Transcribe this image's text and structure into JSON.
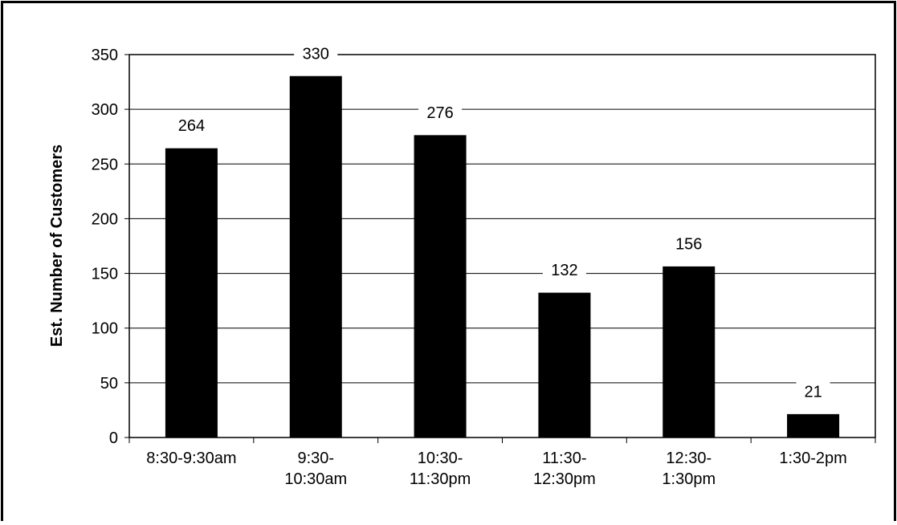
{
  "chart_data": {
    "type": "bar",
    "title": "",
    "xlabel": "",
    "ylabel": "Est. Number of Customers",
    "categories": [
      [
        "8:30-9:30am"
      ],
      [
        "9:30-",
        "10:30am"
      ],
      [
        "10:30-",
        "11:30pm"
      ],
      [
        "11:30-",
        "12:30pm"
      ],
      [
        "12:30-",
        "1:30pm"
      ],
      [
        "1:30-2pm"
      ]
    ],
    "values": [
      264,
      330,
      276,
      132,
      156,
      21
    ],
    "data_labels": [
      "264",
      "330",
      "276",
      "132",
      "156",
      "21"
    ],
    "ylim": [
      0,
      350
    ],
    "yticks": [
      0,
      50,
      100,
      150,
      200,
      250,
      300,
      350
    ],
    "grid": true,
    "legend": "none",
    "colors": {
      "bar": "#000000",
      "grid": "#000000",
      "background": "#ffffff"
    }
  }
}
